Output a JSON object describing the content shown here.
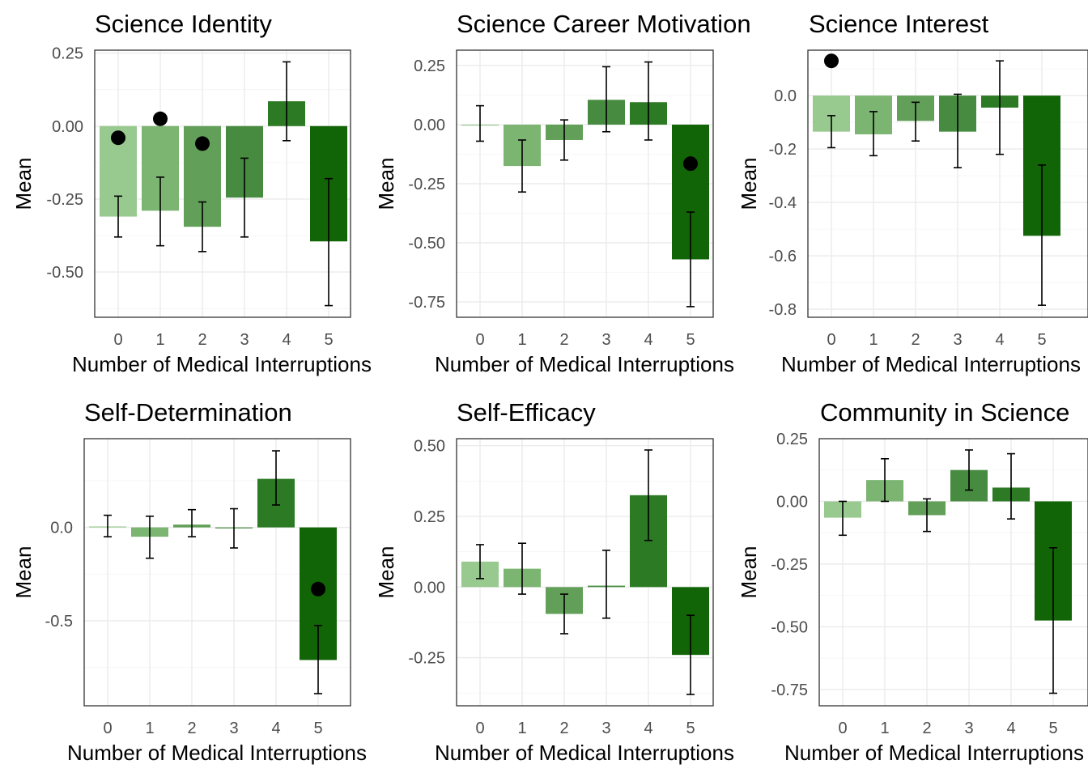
{
  "palette": [
    "#98c98e",
    "#7cb472",
    "#629f58",
    "#478b40",
    "#2c7a23",
    "#126506"
  ],
  "point_color": "#000000",
  "chart_data": [
    {
      "type": "bar",
      "title": "Science Identity",
      "xlabel": "Number of Medical Interruptions",
      "ylabel": "Mean",
      "categories": [
        "0",
        "1",
        "2",
        "3",
        "4",
        "5"
      ],
      "values": [
        -0.31,
        -0.29,
        -0.345,
        -0.245,
        0.085,
        -0.395
      ],
      "error_low": [
        -0.38,
        -0.41,
        -0.43,
        -0.38,
        -0.05,
        -0.615
      ],
      "error_high": [
        -0.24,
        -0.175,
        -0.26,
        -0.11,
        0.22,
        -0.18
      ],
      "points": [
        {
          "x": "0",
          "y": -0.04
        },
        {
          "x": "1",
          "y": 0.025
        },
        {
          "x": "2",
          "y": -0.06
        }
      ],
      "ylim": [
        -0.655,
        0.26
      ],
      "yticks": [
        -0.5,
        -0.25,
        0.0,
        0.25
      ],
      "ytick_labels": [
        "-0.50",
        "-0.25",
        "0.00",
        "0.25"
      ],
      "grid": true
    },
    {
      "type": "bar",
      "title": "Science Career Motivation",
      "xlabel": "Number of Medical Interruptions",
      "ylabel": "Mean",
      "categories": [
        "0",
        "1",
        "2",
        "3",
        "4",
        "5"
      ],
      "values": [
        0.0,
        -0.175,
        -0.065,
        0.105,
        0.095,
        -0.57
      ],
      "error_low": [
        -0.07,
        -0.285,
        -0.15,
        -0.03,
        -0.065,
        -0.77
      ],
      "error_high": [
        0.08,
        -0.065,
        0.02,
        0.245,
        0.265,
        -0.37
      ],
      "points": [
        {
          "x": "5",
          "y": -0.165
        }
      ],
      "ylim": [
        -0.815,
        0.315
      ],
      "yticks": [
        -0.75,
        -0.5,
        -0.25,
        0.0,
        0.25
      ],
      "ytick_labels": [
        "-0.75",
        "-0.50",
        "-0.25",
        "0.00",
        "0.25"
      ],
      "grid": true
    },
    {
      "type": "bar",
      "title": "Science Interest",
      "xlabel": "Number of Medical Interruptions",
      "ylabel": "Mean",
      "categories": [
        "0",
        "1",
        "2",
        "3",
        "4",
        "5"
      ],
      "values": [
        -0.135,
        -0.145,
        -0.095,
        -0.135,
        -0.045,
        -0.525
      ],
      "error_low": [
        -0.195,
        -0.225,
        -0.17,
        -0.27,
        -0.22,
        -0.785
      ],
      "error_high": [
        -0.075,
        -0.06,
        -0.025,
        0.005,
        0.13,
        -0.26
      ],
      "points": [
        {
          "x": "0",
          "y": 0.13
        }
      ],
      "ylim": [
        -0.83,
        0.17
      ],
      "yticks": [
        -0.8,
        -0.6,
        -0.4,
        -0.2,
        0.0
      ],
      "ytick_labels": [
        "-0.8",
        "-0.6",
        "-0.4",
        "-0.2",
        "0.0"
      ],
      "grid": true
    },
    {
      "type": "bar",
      "title": "Self-Determination",
      "xlabel": "Number of Medical Interruptions",
      "ylabel": "Mean",
      "categories": [
        "0",
        "1",
        "2",
        "3",
        "4",
        "5"
      ],
      "values": [
        0.005,
        -0.05,
        0.015,
        -0.005,
        0.26,
        -0.71
      ],
      "error_low": [
        -0.05,
        -0.165,
        -0.05,
        -0.11,
        0.12,
        -0.89
      ],
      "error_high": [
        0.065,
        0.06,
        0.095,
        0.1,
        0.41,
        -0.525
      ],
      "points": [
        {
          "x": "5",
          "y": -0.33
        }
      ],
      "ylim": [
        -0.955,
        0.475
      ],
      "yticks": [
        -0.5,
        0.0
      ],
      "ytick_labels": [
        "-0.5",
        "0.0"
      ],
      "grid": true
    },
    {
      "type": "bar",
      "title": "Self-Efficacy",
      "xlabel": "Number of Medical Interruptions",
      "ylabel": "Mean",
      "categories": [
        "0",
        "1",
        "2",
        "3",
        "4",
        "5"
      ],
      "values": [
        0.09,
        0.065,
        -0.095,
        0.005,
        0.325,
        -0.24
      ],
      "error_low": [
        0.03,
        -0.025,
        -0.165,
        -0.11,
        0.165,
        -0.38
      ],
      "error_high": [
        0.15,
        0.155,
        -0.025,
        0.13,
        0.485,
        -0.1
      ],
      "points": [],
      "ylim": [
        -0.42,
        0.525
      ],
      "yticks": [
        -0.25,
        0.0,
        0.25,
        0.5
      ],
      "ytick_labels": [
        "-0.25",
        "0.00",
        "0.25",
        "0.50"
      ],
      "grid": true
    },
    {
      "type": "bar",
      "title": "Community in Science",
      "xlabel": "Number of Medical Interruptions",
      "ylabel": "Mean",
      "categories": [
        "0",
        "1",
        "2",
        "3",
        "4",
        "5"
      ],
      "values": [
        -0.065,
        0.085,
        -0.055,
        0.125,
        0.055,
        -0.475
      ],
      "error_low": [
        -0.135,
        0.0,
        -0.12,
        0.045,
        -0.07,
        -0.765
      ],
      "error_high": [
        0.0,
        0.17,
        0.01,
        0.205,
        0.19,
        -0.185
      ],
      "points": [],
      "ylim": [
        -0.815,
        0.25
      ],
      "yticks": [
        -0.75,
        -0.5,
        -0.25,
        0.0,
        0.25
      ],
      "ytick_labels": [
        "-0.75",
        "-0.50",
        "-0.25",
        "0.00",
        "0.25"
      ],
      "grid": true
    }
  ]
}
